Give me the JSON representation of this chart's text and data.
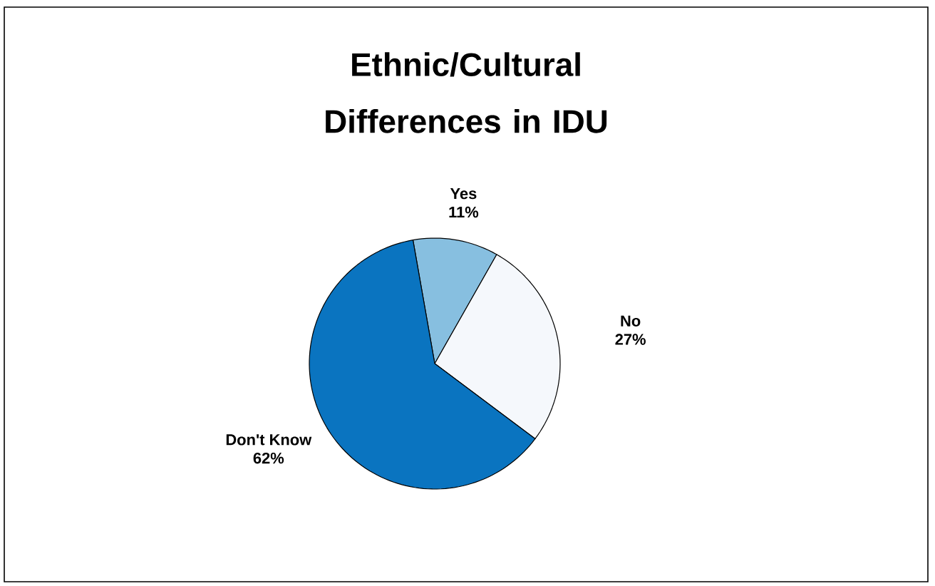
{
  "chart_data": {
    "type": "pie",
    "title": "Ethnic/Cultural Differences in IDU",
    "categories": [
      "Yes",
      "No",
      "Don't Know"
    ],
    "values": [
      11,
      27,
      62
    ],
    "value_labels": [
      "11%",
      "27%",
      "62%"
    ],
    "colors": [
      "#87bfe0",
      "#f5f8fc",
      "#0a74c0"
    ],
    "legend": false
  }
}
